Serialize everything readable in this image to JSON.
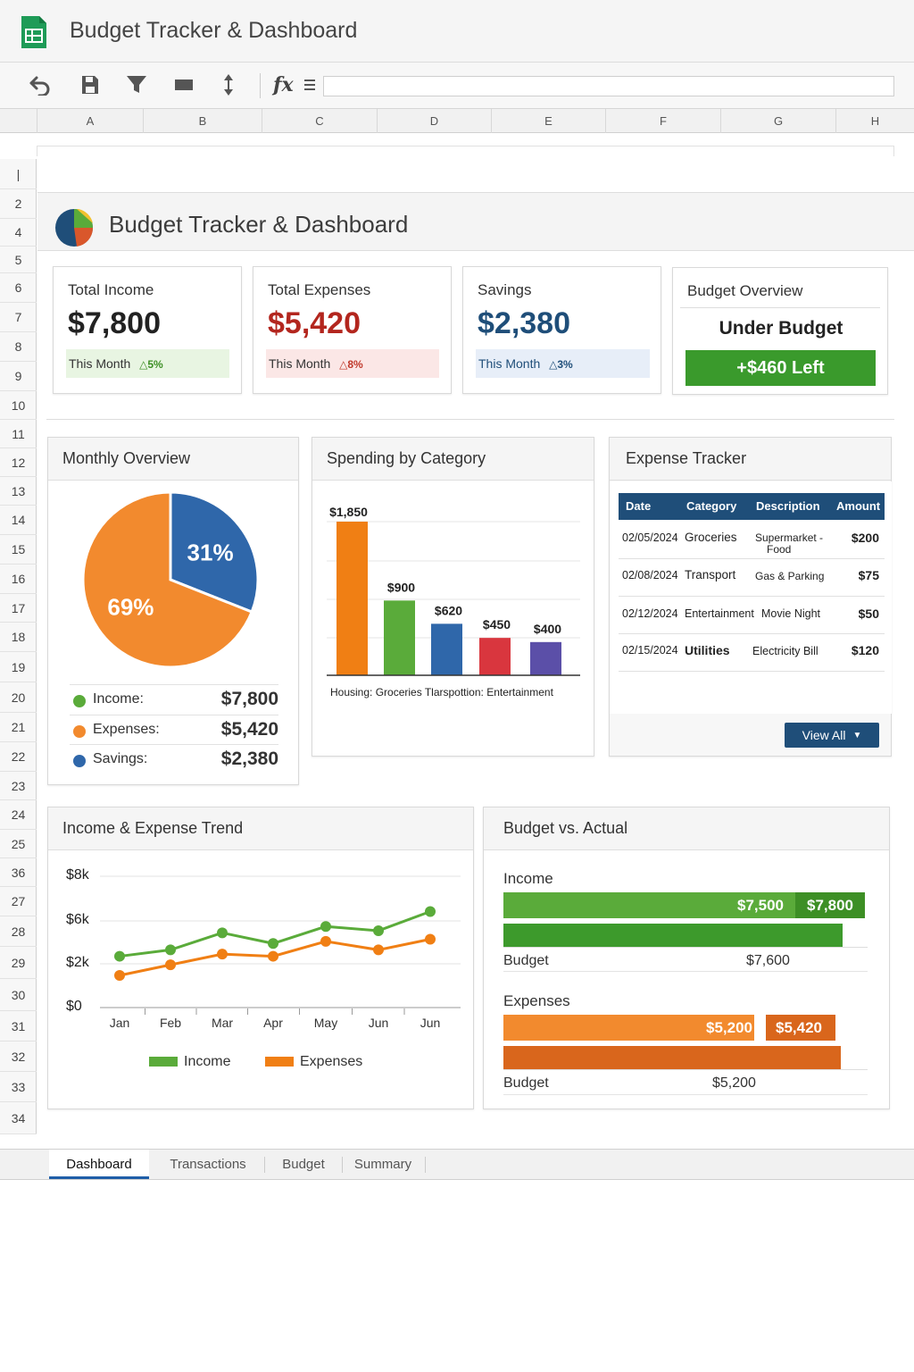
{
  "app": {
    "title": "Budget Tracker & Dashboard",
    "logo_icon": "sheets-logo-icon"
  },
  "toolbar": {
    "fx_label": "fx",
    "formula_value": ""
  },
  "columns": [
    "A",
    "B",
    "C",
    "D",
    "E",
    "F",
    "G",
    "H"
  ],
  "rows": [
    "|",
    "2",
    "4",
    "5",
    "6",
    "7",
    "8",
    "9",
    "10",
    "11",
    "12",
    "13",
    "14",
    "15",
    "16",
    "17",
    "18",
    "19",
    "20",
    "21",
    "22",
    "23",
    "24",
    "25",
    "36",
    "27",
    "28",
    "29",
    "30",
    "31",
    "32",
    "33",
    "34"
  ],
  "dashboard": {
    "title": "Budget Tracker & Dashboard"
  },
  "kpis": {
    "income": {
      "label": "Total Income",
      "value": "$7,800",
      "period": "This Month",
      "change": "5%",
      "color": "#222222"
    },
    "expenses": {
      "label": "Total Expenses",
      "value": "$5,420",
      "period": "This Month",
      "change": "8%",
      "color": "#b3261e"
    },
    "savings": {
      "label": "Savings",
      "value": "$2,380",
      "period": "This Month",
      "change": "3%",
      "color": "#1f4e79"
    },
    "overview": {
      "label": "Budget Overview",
      "status": "Under Budget",
      "left": "+$460 Left"
    }
  },
  "monthly_overview": {
    "title": "Monthly Overview",
    "legend": [
      {
        "label": "Income:",
        "value": "$7,800",
        "color": "#5aab3a"
      },
      {
        "label": "Expenses:",
        "value": "$5,420",
        "color": "#f28a2e"
      },
      {
        "label": "Savings:",
        "value": "$2,380",
        "color": "#2f67aa"
      }
    ]
  },
  "spending": {
    "title": "Spending by Category",
    "x_caption": "Housing: Groceries Tlarspottion: Entertainment"
  },
  "expense_tracker": {
    "title": "Expense Tracker",
    "headers": {
      "date": "Date",
      "category": "Category",
      "description": "Description",
      "amount": "Amount"
    },
    "rows": [
      {
        "date": "02/05/2024",
        "category": "Groceries",
        "description": "Supermarket -",
        "description2": "Food",
        "amount": "$200"
      },
      {
        "date": "02/08/2024",
        "category": "Transport",
        "description": "Gas & Parking",
        "description2": "",
        "amount": "$75"
      },
      {
        "date": "02/12/2024",
        "category": "Entertainment",
        "description": "Movie Night",
        "description2": "",
        "amount": "$50"
      },
      {
        "date": "02/15/2024",
        "category": "Utilities",
        "description": "Electricity Bill",
        "description2": "",
        "amount": "$120"
      }
    ],
    "view_all": "View All"
  },
  "trend": {
    "title": "Income & Expense Trend"
  },
  "budget_vs_actual": {
    "title": "Budget vs. Actual",
    "income": {
      "label": "Income",
      "actual_a": "$7,500",
      "actual_b": "$7,800",
      "budget_label": "Budget",
      "budget_value": "$7,600",
      "color": "#5aab3a"
    },
    "expenses": {
      "label": "Expenses",
      "actual_a": "$5,200",
      "actual_b": "$5,420",
      "budget_label": "Budget",
      "budget_value": "$5,200",
      "color": "#f28a2e"
    }
  },
  "tabs": [
    "Dashboard",
    "Transactions",
    "Budget",
    "Summary"
  ],
  "chart_data": [
    {
      "type": "pie",
      "title": "Monthly Overview",
      "slices": [
        {
          "label": "69%",
          "value": 69,
          "color": "#f28a2e"
        },
        {
          "label": "31%",
          "value": 31,
          "color": "#2f67aa"
        }
      ]
    },
    {
      "type": "bar",
      "title": "Spending by Category",
      "values": [
        1850,
        900,
        620,
        450,
        400
      ],
      "value_labels": [
        "$1,850",
        "$900",
        "$620",
        "$450",
        "$400"
      ],
      "colors": [
        "#f07f14",
        "#5aab3a",
        "#2f67aa",
        "#d9363e",
        "#5b4fa8"
      ],
      "ylim": [
        0,
        1850
      ]
    },
    {
      "type": "line",
      "title": "Income & Expense Trend",
      "categories": [
        "Jan",
        "Feb",
        "Mar",
        "Apr",
        "May",
        "Jun",
        "Jun"
      ],
      "y_ticks": [
        "$8k",
        "$6k",
        "$2k",
        "$0"
      ],
      "series": [
        {
          "name": "Income",
          "values": [
            2.2,
            2.5,
            3.3,
            2.8,
            3.6,
            3.4,
            4.3
          ],
          "color": "#5aab3a"
        },
        {
          "name": "Expenses",
          "values": [
            1.3,
            1.8,
            2.3,
            2.2,
            2.9,
            2.5,
            3.0
          ],
          "color": "#f07f14"
        }
      ],
      "ylim": [
        0,
        6
      ],
      "legend": "bottom"
    },
    {
      "type": "bar",
      "title": "Budget vs. Actual",
      "categories": [
        "Income",
        "Expenses"
      ],
      "series": [
        {
          "name": "Actual",
          "values": [
            7800,
            5420
          ]
        },
        {
          "name": "Budget",
          "values": [
            7600,
            5200
          ]
        }
      ]
    }
  ]
}
